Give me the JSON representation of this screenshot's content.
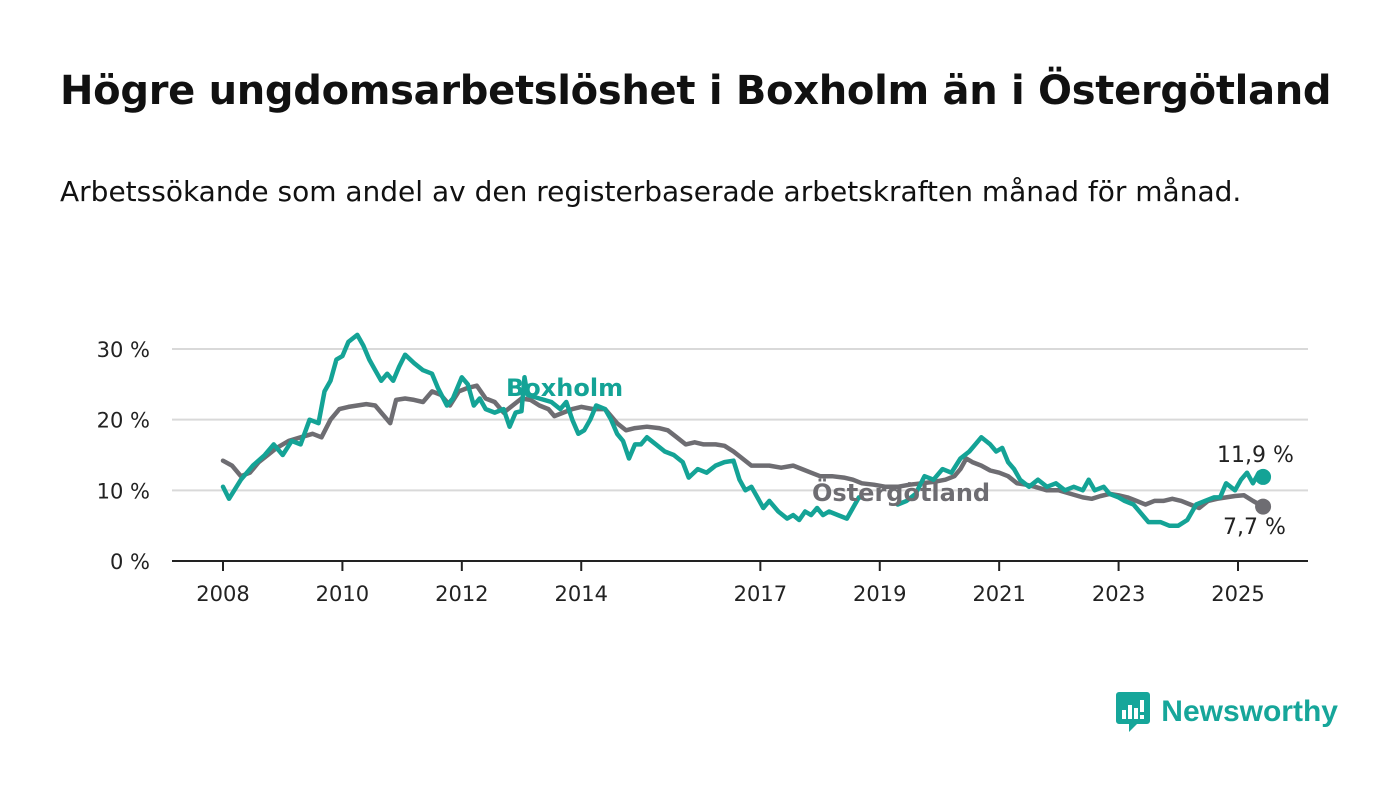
{
  "title": "Högre ungdomsarbetslöshet i Boxholm än i Östergötland",
  "subtitle": "Arbetssökande som andel av den registerbaserade arbetskraften månad för månad.",
  "brand": {
    "name": "Newsworthy"
  },
  "colors": {
    "boxholm": "#14a396",
    "ostergotland": "#6e6d72",
    "grid": "#d9d9d9",
    "axis": "#222222"
  },
  "chart_data": {
    "type": "line",
    "title": "Högre ungdomsarbetslöshet i Boxholm än i Östergötland",
    "ylim": [
      0,
      33
    ],
    "yticks": [
      0,
      10,
      20,
      30
    ],
    "ytick_labels": [
      "0 %",
      "10 %",
      "20 %",
      "30 %"
    ],
    "xlim": [
      2007.6,
      2026.2
    ],
    "xticks": [
      2008,
      2010,
      2012,
      2014,
      2017,
      2019,
      2021,
      2023,
      2025
    ],
    "xtick_labels": [
      "2008",
      "2010",
      "2012",
      "2014",
      "2017",
      "2019",
      "2021",
      "2023",
      "2025"
    ],
    "grid": true,
    "series": [
      {
        "name": "Boxholm",
        "end_label": "11,9 %",
        "points": [
          [
            2008.0,
            10.5
          ],
          [
            2008.1,
            8.8
          ],
          [
            2008.3,
            11.5
          ],
          [
            2008.5,
            13.5
          ],
          [
            2008.7,
            15.0
          ],
          [
            2008.85,
            16.5
          ],
          [
            2009.0,
            15.0
          ],
          [
            2009.15,
            17.0
          ],
          [
            2009.3,
            16.5
          ],
          [
            2009.45,
            20.0
          ],
          [
            2009.6,
            19.5
          ],
          [
            2009.7,
            24.0
          ],
          [
            2009.8,
            25.5
          ],
          [
            2009.9,
            28.5
          ],
          [
            2010.0,
            29.0
          ],
          [
            2010.1,
            31.0
          ],
          [
            2010.25,
            32.0
          ],
          [
            2010.35,
            30.5
          ],
          [
            2010.45,
            28.5
          ],
          [
            2010.55,
            27.0
          ],
          [
            2010.65,
            25.5
          ],
          [
            2010.75,
            26.5
          ],
          [
            2010.85,
            25.5
          ],
          [
            2010.95,
            27.5
          ],
          [
            2011.05,
            29.2
          ],
          [
            2011.2,
            28.0
          ],
          [
            2011.35,
            27.0
          ],
          [
            2011.5,
            26.5
          ],
          [
            2011.6,
            24.5
          ],
          [
            2011.75,
            22.0
          ],
          [
            2011.85,
            23.0
          ],
          [
            2012.0,
            26.0
          ],
          [
            2012.1,
            25.0
          ],
          [
            2012.2,
            22.0
          ],
          [
            2012.3,
            23.0
          ],
          [
            2012.4,
            21.5
          ],
          [
            2012.55,
            21.0
          ],
          [
            2012.7,
            21.5
          ],
          [
            2012.8,
            19.0
          ],
          [
            2012.9,
            21.0
          ],
          [
            2013.0,
            21.2
          ],
          [
            2013.05,
            26.0
          ],
          [
            2013.1,
            23.5
          ],
          [
            2013.3,
            23.0
          ],
          [
            2013.5,
            22.5
          ],
          [
            2013.65,
            21.5
          ],
          [
            2013.75,
            22.5
          ],
          [
            2013.85,
            20.0
          ],
          [
            2013.95,
            18.0
          ],
          [
            2014.05,
            18.5
          ],
          [
            2014.15,
            20.0
          ],
          [
            2014.25,
            22.0
          ],
          [
            2014.4,
            21.5
          ],
          [
            2014.5,
            20.0
          ],
          [
            2014.6,
            18.0
          ],
          [
            2014.7,
            17.0
          ],
          [
            2014.8,
            14.5
          ],
          [
            2014.9,
            16.5
          ],
          [
            2015.0,
            16.5
          ],
          [
            2015.1,
            17.5
          ],
          [
            2015.25,
            16.5
          ],
          [
            2015.4,
            15.5
          ],
          [
            2015.55,
            15.0
          ],
          [
            2015.7,
            14.0
          ],
          [
            2015.8,
            11.8
          ],
          [
            2015.95,
            13.0
          ],
          [
            2016.1,
            12.5
          ],
          [
            2016.25,
            13.5
          ],
          [
            2016.4,
            14.0
          ],
          [
            2016.55,
            14.2
          ],
          [
            2016.65,
            11.5
          ],
          [
            2016.75,
            10.0
          ],
          [
            2016.85,
            10.5
          ],
          [
            2016.95,
            9.0
          ],
          [
            2017.05,
            7.5
          ],
          [
            2017.15,
            8.5
          ],
          [
            2017.3,
            7.0
          ],
          [
            2017.45,
            6.0
          ],
          [
            2017.55,
            6.5
          ],
          [
            2017.65,
            5.8
          ],
          [
            2017.75,
            7.0
          ],
          [
            2017.85,
            6.5
          ],
          [
            2017.95,
            7.5
          ],
          [
            2018.05,
            6.5
          ],
          [
            2018.15,
            7.0
          ],
          [
            2018.3,
            6.5
          ],
          [
            2018.45,
            6.0
          ],
          [
            2018.55,
            7.5
          ],
          [
            2018.65,
            9.0
          ],
          [
            2018.7,
            9.0
          ]
        ]
      },
      {
        "name": "Boxholm-segment-2",
        "points": [
          [
            2019.3,
            8.0
          ],
          [
            2019.45,
            8.5
          ],
          [
            2019.6,
            9.5
          ],
          [
            2019.75,
            12.0
          ],
          [
            2019.9,
            11.5
          ],
          [
            2020.05,
            13.0
          ],
          [
            2020.2,
            12.5
          ],
          [
            2020.35,
            14.5
          ],
          [
            2020.5,
            15.5
          ],
          [
            2020.6,
            16.5
          ],
          [
            2020.7,
            17.5
          ],
          [
            2020.85,
            16.5
          ],
          [
            2020.95,
            15.5
          ],
          [
            2021.05,
            16.0
          ],
          [
            2021.15,
            14.0
          ],
          [
            2021.25,
            13.0
          ],
          [
            2021.35,
            11.5
          ],
          [
            2021.5,
            10.5
          ],
          [
            2021.65,
            11.5
          ],
          [
            2021.8,
            10.5
          ],
          [
            2021.95,
            11.0
          ],
          [
            2022.1,
            10.0
          ],
          [
            2022.25,
            10.5
          ],
          [
            2022.4,
            10.0
          ],
          [
            2022.5,
            11.5
          ],
          [
            2022.6,
            10.0
          ],
          [
            2022.75,
            10.5
          ],
          [
            2022.85,
            9.5
          ],
          [
            2023.0,
            9.0
          ],
          [
            2023.1,
            8.5
          ],
          [
            2023.25,
            8.0
          ],
          [
            2023.4,
            6.5
          ],
          [
            2023.5,
            5.5
          ],
          [
            2023.7,
            5.5
          ],
          [
            2023.85,
            5.0
          ],
          [
            2024.0,
            5.0
          ],
          [
            2024.15,
            5.8
          ],
          [
            2024.3,
            8.0
          ],
          [
            2024.45,
            8.5
          ],
          [
            2024.6,
            9.0
          ],
          [
            2024.7,
            9.0
          ],
          [
            2024.8,
            11.0
          ],
          [
            2024.95,
            10.0
          ],
          [
            2025.05,
            11.5
          ],
          [
            2025.15,
            12.5
          ],
          [
            2025.25,
            11.0
          ],
          [
            2025.35,
            12.5
          ],
          [
            2025.42,
            11.9
          ]
        ]
      },
      {
        "name": "Östergötland",
        "end_label": "7,7 %",
        "points": [
          [
            2008.0,
            14.2
          ],
          [
            2008.15,
            13.5
          ],
          [
            2008.3,
            12.0
          ],
          [
            2008.45,
            12.5
          ],
          [
            2008.6,
            14.0
          ],
          [
            2008.75,
            15.0
          ],
          [
            2008.9,
            16.0
          ],
          [
            2009.1,
            17.0
          ],
          [
            2009.3,
            17.5
          ],
          [
            2009.5,
            18.0
          ],
          [
            2009.65,
            17.5
          ],
          [
            2009.8,
            20.0
          ],
          [
            2009.95,
            21.5
          ],
          [
            2010.1,
            21.8
          ],
          [
            2010.25,
            22.0
          ],
          [
            2010.4,
            22.2
          ],
          [
            2010.55,
            22.0
          ],
          [
            2010.7,
            20.5
          ],
          [
            2010.8,
            19.5
          ],
          [
            2010.9,
            22.8
          ],
          [
            2011.05,
            23.0
          ],
          [
            2011.2,
            22.8
          ],
          [
            2011.35,
            22.5
          ],
          [
            2011.5,
            24.0
          ],
          [
            2011.65,
            23.5
          ],
          [
            2011.8,
            22.0
          ],
          [
            2011.95,
            24.0
          ],
          [
            2012.1,
            24.5
          ],
          [
            2012.25,
            24.8
          ],
          [
            2012.4,
            23.0
          ],
          [
            2012.55,
            22.5
          ],
          [
            2012.7,
            21.0
          ],
          [
            2012.85,
            22.0
          ],
          [
            2013.0,
            23.0
          ],
          [
            2013.15,
            22.8
          ],
          [
            2013.3,
            22.0
          ],
          [
            2013.45,
            21.5
          ],
          [
            2013.55,
            20.5
          ],
          [
            2013.7,
            21.0
          ],
          [
            2013.85,
            21.5
          ],
          [
            2014.0,
            21.8
          ],
          [
            2014.2,
            21.5
          ],
          [
            2014.4,
            21.5
          ],
          [
            2014.6,
            19.5
          ],
          [
            2014.75,
            18.5
          ],
          [
            2014.9,
            18.8
          ],
          [
            2015.1,
            19.0
          ],
          [
            2015.3,
            18.8
          ],
          [
            2015.45,
            18.5
          ],
          [
            2015.6,
            17.5
          ],
          [
            2015.75,
            16.5
          ],
          [
            2015.9,
            16.8
          ],
          [
            2016.05,
            16.5
          ],
          [
            2016.25,
            16.5
          ],
          [
            2016.4,
            16.3
          ],
          [
            2016.55,
            15.5
          ],
          [
            2016.7,
            14.5
          ],
          [
            2016.85,
            13.5
          ],
          [
            2017.0,
            13.5
          ],
          [
            2017.15,
            13.5
          ],
          [
            2017.35,
            13.2
          ],
          [
            2017.55,
            13.5
          ],
          [
            2017.7,
            13.0
          ],
          [
            2017.85,
            12.5
          ],
          [
            2018.0,
            12.0
          ],
          [
            2018.2,
            12.0
          ],
          [
            2018.4,
            11.8
          ],
          [
            2018.55,
            11.5
          ],
          [
            2018.7,
            11.0
          ],
          [
            2018.9,
            10.8
          ],
          [
            2019.1,
            10.5
          ],
          [
            2019.3,
            10.5
          ],
          [
            2019.5,
            10.8
          ],
          [
            2019.7,
            11.0
          ],
          [
            2019.9,
            11.2
          ],
          [
            2020.1,
            11.5
          ],
          [
            2020.25,
            12.0
          ],
          [
            2020.35,
            13.0
          ],
          [
            2020.45,
            14.5
          ],
          [
            2020.55,
            14.0
          ],
          [
            2020.7,
            13.5
          ],
          [
            2020.85,
            12.8
          ],
          [
            2021.0,
            12.5
          ],
          [
            2021.15,
            12.0
          ],
          [
            2021.3,
            11.0
          ],
          [
            2021.45,
            10.8
          ],
          [
            2021.6,
            10.5
          ],
          [
            2021.8,
            10.0
          ],
          [
            2022.0,
            10.0
          ],
          [
            2022.2,
            9.5
          ],
          [
            2022.4,
            9.0
          ],
          [
            2022.55,
            8.8
          ],
          [
            2022.7,
            9.2
          ],
          [
            2022.85,
            9.5
          ],
          [
            2023.0,
            9.3
          ],
          [
            2023.15,
            9.0
          ],
          [
            2023.3,
            8.5
          ],
          [
            2023.45,
            8.0
          ],
          [
            2023.6,
            8.5
          ],
          [
            2023.75,
            8.5
          ],
          [
            2023.9,
            8.8
          ],
          [
            2024.05,
            8.5
          ],
          [
            2024.2,
            8.0
          ],
          [
            2024.35,
            7.5
          ],
          [
            2024.5,
            8.5
          ],
          [
            2024.65,
            8.8
          ],
          [
            2024.8,
            9.0
          ],
          [
            2024.95,
            9.2
          ],
          [
            2025.1,
            9.3
          ],
          [
            2025.25,
            8.5
          ],
          [
            2025.42,
            7.7
          ]
        ]
      }
    ]
  }
}
